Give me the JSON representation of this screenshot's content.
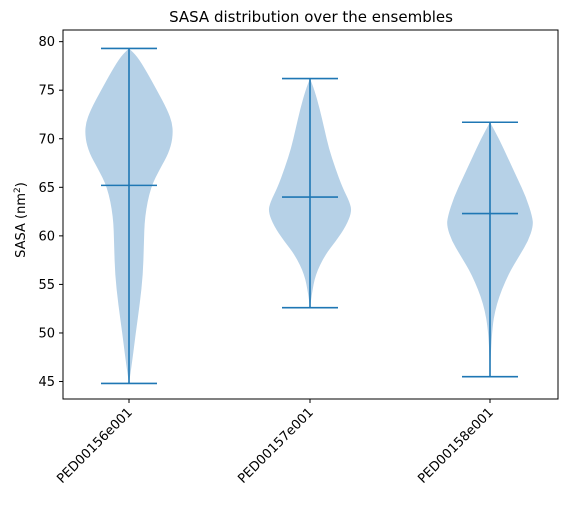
{
  "chart_data": {
    "type": "violin",
    "title": "SASA distribution over the ensembles",
    "ylabel_main": "SASA (nm",
    "ylabel_sup": "2",
    "ylabel_close": ")",
    "xlabel": "",
    "ylim": [
      43.2,
      81.2
    ],
    "yticks": [
      45,
      50,
      55,
      60,
      65,
      70,
      75,
      80
    ],
    "grid": false,
    "categories": [
      "PED00156e001",
      "PED00157e001",
      "PED00158e001"
    ],
    "violins": [
      {
        "name": "PED00156e001",
        "min": 44.8,
        "max": 79.3,
        "mean": 65.2,
        "profile": [
          [
            44.8,
            0.0
          ],
          [
            47.0,
            0.07
          ],
          [
            50.0,
            0.15
          ],
          [
            53.0,
            0.24
          ],
          [
            56.0,
            0.31
          ],
          [
            59.0,
            0.33
          ],
          [
            62.0,
            0.35
          ],
          [
            65.0,
            0.48
          ],
          [
            67.0,
            0.7
          ],
          [
            68.5,
            0.88
          ],
          [
            70.0,
            0.97
          ],
          [
            71.5,
            0.97
          ],
          [
            73.0,
            0.85
          ],
          [
            75.0,
            0.62
          ],
          [
            77.0,
            0.38
          ],
          [
            78.5,
            0.18
          ],
          [
            79.3,
            0.0
          ]
        ]
      },
      {
        "name": "PED00157e001",
        "min": 52.6,
        "max": 76.2,
        "mean": 64.0,
        "profile": [
          [
            52.6,
            0.0
          ],
          [
            54.0,
            0.04
          ],
          [
            56.0,
            0.12
          ],
          [
            58.0,
            0.33
          ],
          [
            59.5,
            0.58
          ],
          [
            61.0,
            0.8
          ],
          [
            62.5,
            0.93
          ],
          [
            63.5,
            0.88
          ],
          [
            65.0,
            0.72
          ],
          [
            67.0,
            0.56
          ],
          [
            69.0,
            0.42
          ],
          [
            71.0,
            0.32
          ],
          [
            73.0,
            0.22
          ],
          [
            75.0,
            0.1
          ],
          [
            76.2,
            0.0
          ]
        ]
      },
      {
        "name": "PED00158e001",
        "min": 45.5,
        "max": 71.7,
        "mean": 62.3,
        "profile": [
          [
            45.5,
            0.0
          ],
          [
            50.0,
            0.03
          ],
          [
            53.0,
            0.14
          ],
          [
            56.0,
            0.4
          ],
          [
            58.0,
            0.66
          ],
          [
            59.5,
            0.85
          ],
          [
            61.0,
            0.96
          ],
          [
            62.0,
            0.94
          ],
          [
            64.0,
            0.8
          ],
          [
            66.0,
            0.6
          ],
          [
            68.0,
            0.4
          ],
          [
            70.0,
            0.2
          ],
          [
            71.7,
            0.0
          ]
        ]
      }
    ],
    "colors": {
      "body": "#a9c9e3",
      "line": "#1f77b4"
    }
  }
}
